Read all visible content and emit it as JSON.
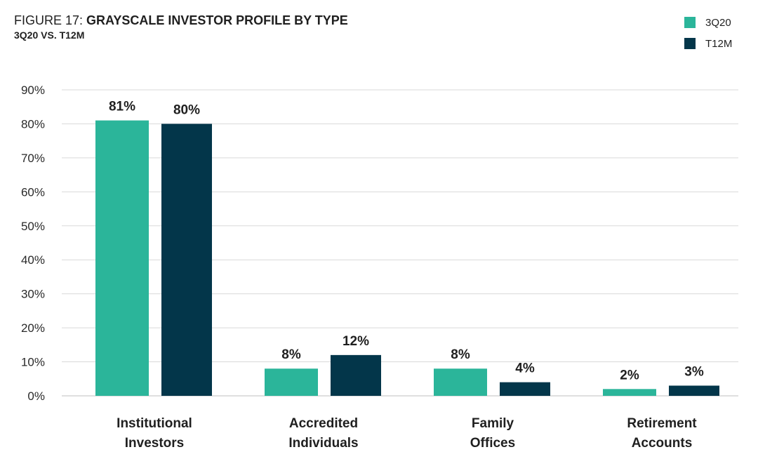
{
  "figure": {
    "prefix": "FIGURE 17:",
    "title": "GRAYSCALE INVESTOR PROFILE BY TYPE",
    "subtitle": "3Q20 VS. T12M"
  },
  "colors": {
    "series_3q20": "#2bb59a",
    "series_t12m": "#03364a",
    "grid": "#d9d9d9",
    "baseline": "#bfbfbf"
  },
  "chart_data": {
    "type": "bar",
    "categories": [
      [
        "Institutional",
        "Investors"
      ],
      [
        "Accredited",
        "Individuals"
      ],
      [
        "Family",
        "Offices"
      ],
      [
        "Retirement",
        "Accounts"
      ]
    ],
    "series": [
      {
        "name": "3Q20",
        "values": [
          81,
          8,
          8,
          2
        ],
        "labels": [
          "81%",
          "8%",
          "8%",
          "2%"
        ]
      },
      {
        "name": "T12M",
        "values": [
          80,
          12,
          4,
          3
        ],
        "labels": [
          "80%",
          "12%",
          "4%",
          "3%"
        ]
      }
    ],
    "ylim": [
      0,
      90
    ],
    "yticks": [
      0,
      10,
      20,
      30,
      40,
      50,
      60,
      70,
      80,
      90
    ],
    "ytick_labels": [
      "0%",
      "10%",
      "20%",
      "30%",
      "40%",
      "50%",
      "60%",
      "70%",
      "80%",
      "90%"
    ],
    "grid": true,
    "legend_position": "top-right"
  }
}
